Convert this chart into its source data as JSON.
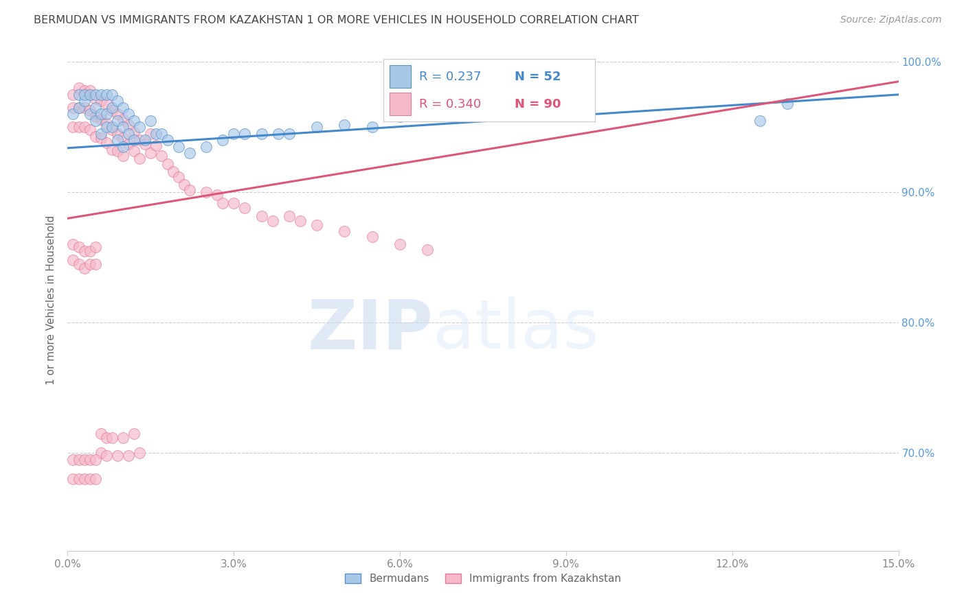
{
  "title": "BERMUDAN VS IMMIGRANTS FROM KAZAKHSTAN 1 OR MORE VEHICLES IN HOUSEHOLD CORRELATION CHART",
  "source": "Source: ZipAtlas.com",
  "ylabel": "1 or more Vehicles in Household",
  "xlim": [
    0.0,
    0.15
  ],
  "ylim": [
    0.625,
    1.01
  ],
  "xticks": [
    0.0,
    0.03,
    0.06,
    0.09,
    0.12,
    0.15
  ],
  "xticklabels": [
    "0.0%",
    "3.0%",
    "6.0%",
    "9.0%",
    "12.0%",
    "15.0%"
  ],
  "yticks": [
    0.7,
    0.8,
    0.9,
    1.0
  ],
  "yticklabels": [
    "70.0%",
    "80.0%",
    "90.0%",
    "100.0%"
  ],
  "blue_color": "#a8c8e8",
  "pink_color": "#f4b8c8",
  "blue_edge_color": "#5590c8",
  "pink_edge_color": "#e87898",
  "blue_line_color": "#4488cc",
  "pink_line_color": "#dd5577",
  "right_tick_color": "#5599dd",
  "legend_R_blue": "0.237",
  "legend_N_blue": "52",
  "legend_R_pink": "0.340",
  "legend_N_pink": "90",
  "legend_label_blue": "Bermudans",
  "legend_label_pink": "Immigrants from Kazakhstan",
  "watermark_zip": "ZIP",
  "watermark_atlas": "atlas",
  "background_color": "#ffffff",
  "grid_color": "#cccccc",
  "blue_scatter_x": [
    0.001,
    0.002,
    0.002,
    0.003,
    0.003,
    0.004,
    0.004,
    0.005,
    0.005,
    0.005,
    0.006,
    0.006,
    0.006,
    0.007,
    0.007,
    0.007,
    0.008,
    0.008,
    0.008,
    0.009,
    0.009,
    0.009,
    0.01,
    0.01,
    0.01,
    0.011,
    0.011,
    0.012,
    0.012,
    0.013,
    0.014,
    0.015,
    0.016,
    0.017,
    0.018,
    0.02,
    0.022,
    0.025,
    0.028,
    0.03,
    0.032,
    0.035,
    0.038,
    0.04,
    0.045,
    0.05,
    0.055,
    0.06,
    0.065,
    0.07,
    0.125,
    0.13
  ],
  "blue_scatter_y": [
    0.96,
    0.965,
    0.975,
    0.97,
    0.975,
    0.96,
    0.975,
    0.975,
    0.965,
    0.955,
    0.975,
    0.96,
    0.945,
    0.975,
    0.96,
    0.95,
    0.975,
    0.965,
    0.95,
    0.97,
    0.955,
    0.94,
    0.965,
    0.95,
    0.935,
    0.96,
    0.945,
    0.955,
    0.94,
    0.95,
    0.94,
    0.955,
    0.945,
    0.945,
    0.94,
    0.935,
    0.93,
    0.935,
    0.94,
    0.945,
    0.945,
    0.945,
    0.945,
    0.945,
    0.95,
    0.952,
    0.95,
    0.958,
    0.96,
    0.96,
    0.955,
    0.968
  ],
  "pink_scatter_x": [
    0.001,
    0.001,
    0.001,
    0.002,
    0.002,
    0.002,
    0.003,
    0.003,
    0.003,
    0.004,
    0.004,
    0.004,
    0.005,
    0.005,
    0.005,
    0.006,
    0.006,
    0.006,
    0.007,
    0.007,
    0.007,
    0.008,
    0.008,
    0.008,
    0.009,
    0.009,
    0.009,
    0.01,
    0.01,
    0.01,
    0.011,
    0.011,
    0.012,
    0.012,
    0.013,
    0.013,
    0.014,
    0.015,
    0.015,
    0.016,
    0.017,
    0.018,
    0.019,
    0.02,
    0.021,
    0.022,
    0.025,
    0.027,
    0.028,
    0.03,
    0.032,
    0.035,
    0.037,
    0.04,
    0.042,
    0.045,
    0.05,
    0.055,
    0.06,
    0.065,
    0.001,
    0.001,
    0.002,
    0.002,
    0.003,
    0.003,
    0.004,
    0.004,
    0.005,
    0.005,
    0.006,
    0.006,
    0.007,
    0.007,
    0.008,
    0.009,
    0.01,
    0.011,
    0.012,
    0.013,
    0.001,
    0.001,
    0.002,
    0.002,
    0.003,
    0.003,
    0.004,
    0.004,
    0.005,
    0.005
  ],
  "pink_scatter_y": [
    0.975,
    0.965,
    0.95,
    0.98,
    0.965,
    0.95,
    0.978,
    0.965,
    0.95,
    0.978,
    0.963,
    0.948,
    0.972,
    0.958,
    0.943,
    0.97,
    0.956,
    0.942,
    0.968,
    0.953,
    0.938,
    0.963,
    0.948,
    0.933,
    0.96,
    0.945,
    0.932,
    0.956,
    0.942,
    0.928,
    0.952,
    0.937,
    0.946,
    0.932,
    0.94,
    0.926,
    0.937,
    0.945,
    0.93,
    0.936,
    0.928,
    0.922,
    0.916,
    0.912,
    0.906,
    0.902,
    0.9,
    0.898,
    0.892,
    0.892,
    0.888,
    0.882,
    0.878,
    0.882,
    0.878,
    0.875,
    0.87,
    0.866,
    0.86,
    0.856,
    0.86,
    0.848,
    0.858,
    0.845,
    0.855,
    0.842,
    0.855,
    0.845,
    0.858,
    0.845,
    0.715,
    0.7,
    0.712,
    0.698,
    0.712,
    0.698,
    0.712,
    0.698,
    0.715,
    0.7,
    0.695,
    0.68,
    0.695,
    0.68,
    0.695,
    0.68,
    0.695,
    0.68,
    0.695,
    0.68
  ],
  "blue_trendline_x": [
    0.0,
    0.15
  ],
  "blue_trendline_y": [
    0.934,
    0.975
  ],
  "pink_trendline_x": [
    0.0,
    0.15
  ],
  "pink_trendline_y": [
    0.88,
    0.985
  ]
}
